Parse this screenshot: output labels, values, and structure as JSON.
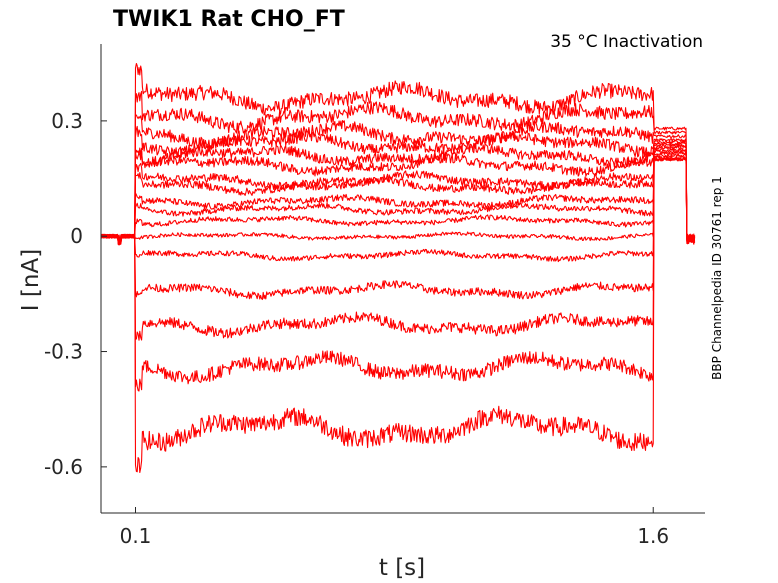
{
  "chart_data": {
    "type": "line",
    "title": "TWIK1  Rat  CHO_FT",
    "condition": "35 °C  Inactivation",
    "xlabel": "t [s]",
    "ylabel": "I [nA]",
    "side_note": "BBP Channelpedia ID 30761 rep 1",
    "xlim": [
      0.0,
      1.75
    ],
    "ylim": [
      -0.72,
      0.5
    ],
    "xticks": [
      0.1,
      1.6
    ],
    "xtick_labels": [
      "0.1",
      "1.6"
    ],
    "yticks": [
      0.3,
      0,
      -0.3,
      -0.6
    ],
    "ytick_labels": [
      "0.3",
      "0",
      "-0.3",
      "-0.6"
    ],
    "color": "#ff0000",
    "pulse_start_s": 0.1,
    "pulse_end_s": 1.6,
    "holding_current_nA": 0.0,
    "series_steady_state_nA": [
      0.36,
      0.31,
      0.265,
      0.24,
      0.21,
      0.185,
      0.145,
      0.13,
      0.09,
      0.07,
      0.04,
      0.0,
      -0.05,
      -0.14,
      -0.23,
      -0.34,
      -0.5
    ],
    "tail_current_nA": [
      0.28,
      0.27,
      0.26,
      0.25,
      0.245,
      0.24,
      0.235,
      0.23,
      0.225,
      0.22,
      0.215,
      0.21,
      0.205,
      0.2,
      0.2,
      0.2,
      0.2
    ]
  }
}
